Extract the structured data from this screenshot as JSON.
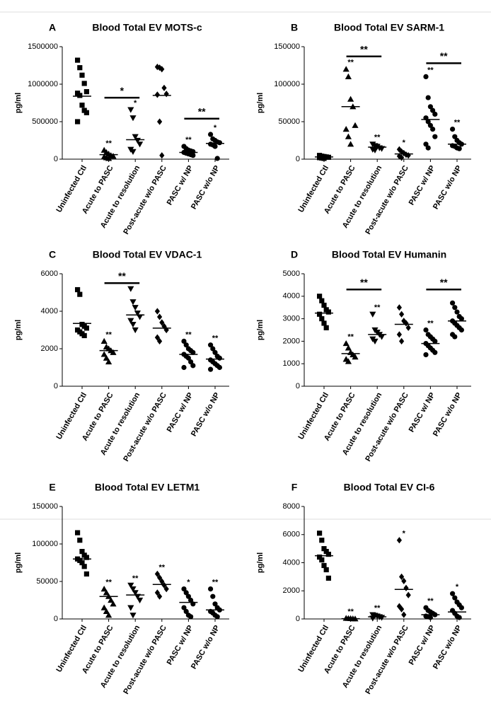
{
  "chart_data": [
    {
      "type": "strip",
      "panel": "A",
      "title": "Blood Total EV MOTS-c",
      "ylabel": "pg/ml",
      "categories": [
        "Uninfected Ctl",
        "Acute to PASC",
        "Acute to resolution",
        "Post-acute w/o PASC",
        "PASC w/ NP",
        "PASC w/o NP"
      ],
      "markers": [
        "square",
        "triangle",
        "triangle-down",
        "diamond",
        "circle",
        "circle"
      ],
      "color": "#000000",
      "values": [
        [
          1320000,
          1220000,
          1120000,
          1010000,
          900000,
          880000,
          850000,
          720000,
          650000,
          620000,
          500000
        ],
        [
          120000,
          90000,
          70000,
          50000,
          40000,
          30000,
          20000,
          10000
        ],
        [
          660000,
          550000,
          300000,
          250000,
          200000,
          130000,
          100000
        ],
        [
          1230000,
          1220000,
          1200000,
          950000,
          870000,
          860000,
          500000,
          50000
        ],
        [
          170000,
          140000,
          120000,
          110000,
          100000,
          90000,
          80000,
          70000,
          60000,
          50000
        ],
        [
          330000,
          270000,
          250000,
          230000,
          220000,
          200000,
          190000,
          170000,
          10000
        ]
      ],
      "means": [
        840000,
        60000,
        260000,
        850000,
        90000,
        210000
      ],
      "annotations": [
        null,
        "**",
        "*",
        null,
        "**",
        "*"
      ],
      "brackets": [
        {
          "from": 1,
          "to": 2,
          "y": 820000,
          "label": "*"
        },
        {
          "from": 4,
          "to": 5,
          "y": 540000,
          "label": "**"
        }
      ],
      "ylim": [
        0,
        1500000
      ],
      "yticks": [
        0,
        500000,
        1000000,
        1500000
      ]
    },
    {
      "type": "strip",
      "panel": "B",
      "title": "Blood Total EV SARM-1",
      "ylabel": "pg/ml",
      "categories": [
        "Uninfected Ctl",
        "Acute to PASC",
        "Acute to resolution",
        "Post-acute w/o PASC",
        "PASC w/ NP",
        "PASC w/o NP"
      ],
      "markers": [
        "square",
        "triangle",
        "triangle-down",
        "diamond",
        "circle",
        "circle"
      ],
      "color": "#000000",
      "values": [
        [
          5000,
          4000,
          3500,
          3000,
          2500,
          2000,
          1500,
          1000
        ],
        [
          120000,
          110000,
          80000,
          70000,
          45000,
          40000,
          30000,
          20000
        ],
        [
          20000,
          18000,
          17000,
          15000,
          14000,
          13000,
          12000
        ],
        [
          13000,
          10000,
          8000,
          6000,
          5000,
          4000,
          2000
        ],
        [
          110000,
          82000,
          70000,
          65000,
          60000,
          55000,
          50000,
          45000,
          40000,
          30000,
          20000,
          15000
        ],
        [
          40000,
          30000,
          25000,
          22000,
          20000,
          18000,
          17000,
          15000,
          14000
        ]
      ],
      "means": [
        3000,
        70000,
        16000,
        7000,
        53000,
        20000
      ],
      "annotations": [
        null,
        "**",
        "**",
        "*",
        "**",
        "**"
      ],
      "brackets": [
        {
          "from": 1,
          "to": 2,
          "y": 137000,
          "label": "**"
        },
        {
          "from": 4,
          "to": 5,
          "y": 128000,
          "label": "**"
        }
      ],
      "ylim": [
        0,
        150000
      ],
      "yticks": [
        0,
        50000,
        100000,
        150000
      ]
    },
    {
      "type": "strip",
      "panel": "C",
      "title": "Blood Total EV VDAC-1",
      "ylabel": "pg/ml",
      "categories": [
        "Uninfected Ctl",
        "Acute to PASC",
        "Acute to resolution",
        "Post-acute w/o PASC",
        "PASC w/ NP",
        "PASC w/o NP"
      ],
      "markers": [
        "square",
        "triangle",
        "triangle-down",
        "diamond",
        "circle",
        "circle"
      ],
      "color": "#000000",
      "values": [
        [
          5150,
          4900,
          3300,
          3200,
          3100,
          3000,
          2900,
          2800,
          2700
        ],
        [
          2400,
          2100,
          2000,
          1900,
          1800,
          1700,
          1500,
          1300
        ],
        [
          5200,
          4500,
          4200,
          3900,
          3700,
          3500,
          3300,
          3000
        ],
        [
          4000,
          3700,
          3400,
          3200,
          3000,
          2600,
          2400
        ],
        [
          2400,
          2200,
          2000,
          1900,
          1800,
          1700,
          1600,
          1500,
          1300,
          1100,
          1000
        ],
        [
          2200,
          2000,
          1800,
          1600,
          1500,
          1400,
          1300,
          1200,
          1100,
          1000,
          900
        ]
      ],
      "means": [
        3350,
        1900,
        3800,
        3100,
        1700,
        1450
      ],
      "annotations": [
        null,
        "**",
        null,
        null,
        "**",
        "**"
      ],
      "brackets": [
        {
          "from": 1,
          "to": 2,
          "y": 5500,
          "label": "**"
        }
      ],
      "ylim": [
        0,
        6000
      ],
      "yticks": [
        0,
        2000,
        4000,
        6000
      ]
    },
    {
      "type": "strip",
      "panel": "D",
      "title": "Blood Total EV Humanin",
      "ylabel": "pg/ml",
      "categories": [
        "Uninfected Ctl",
        "Acute to PASC",
        "Acute to resolution",
        "Post-acute w/o PASC",
        "PASC w/ NP",
        "PASC w/o NP"
      ],
      "markers": [
        "square",
        "triangle",
        "triangle-down",
        "diamond",
        "circle",
        "circle"
      ],
      "color": "#000000",
      "values": [
        [
          4000,
          3800,
          3600,
          3400,
          3300,
          3200,
          3000,
          2800,
          2600
        ],
        [
          1900,
          1700,
          1500,
          1400,
          1300,
          1200,
          1100
        ],
        [
          3200,
          2500,
          2400,
          2300,
          2200,
          2100,
          2000
        ],
        [
          3500,
          3200,
          2900,
          2800,
          2600,
          2300,
          2000
        ],
        [
          2500,
          2300,
          2200,
          2100,
          2000,
          1900,
          1800,
          1700,
          1600,
          1500,
          1400
        ],
        [
          3700,
          3500,
          3300,
          3100,
          3000,
          2900,
          2800,
          2700,
          2600,
          2500,
          2300,
          2200
        ]
      ],
      "means": [
        3250,
        1450,
        2300,
        2750,
        1900,
        2900
      ],
      "annotations": [
        null,
        "**",
        "**",
        null,
        "**",
        null
      ],
      "brackets": [
        {
          "from": 1,
          "to": 2,
          "y": 4300,
          "label": "**"
        },
        {
          "from": 4,
          "to": 5,
          "y": 4300,
          "label": "**"
        }
      ],
      "ylim": [
        0,
        5000
      ],
      "yticks": [
        0,
        1000,
        2000,
        3000,
        4000,
        5000
      ]
    },
    {
      "type": "strip",
      "panel": "E",
      "title": "Blood Total EV LETM1",
      "ylabel": "pg/ml",
      "categories": [
        "Uninfected Ctl",
        "Acute to PASC",
        "Acute to resolution",
        "Post-acute w/o PASC",
        "PASC w/ NP",
        "PASC w/o NP"
      ],
      "markers": [
        "square",
        "triangle",
        "triangle-down",
        "diamond",
        "circle",
        "circle"
      ],
      "color": "#000000",
      "values": [
        [
          115000,
          105000,
          90000,
          85000,
          82000,
          80000,
          78000,
          75000,
          70000,
          60000
        ],
        [
          40000,
          35000,
          30000,
          25000,
          20000,
          15000,
          10000,
          5000
        ],
        [
          45000,
          40000,
          35000,
          30000,
          25000,
          15000,
          5000
        ],
        [
          60000,
          55000,
          50000,
          45000,
          40000,
          35000,
          30000
        ],
        [
          40000,
          35000,
          30000,
          25000,
          20000,
          15000,
          10000,
          5000,
          3000
        ],
        [
          40000,
          30000,
          20000,
          15000,
          12000,
          10000,
          8000,
          5000,
          3000
        ]
      ],
      "means": [
        80000,
        30000,
        32000,
        46000,
        22000,
        12000
      ],
      "annotations": [
        null,
        "**",
        "**",
        "**",
        "*",
        "**"
      ],
      "brackets": [],
      "ylim": [
        0,
        150000
      ],
      "yticks": [
        0,
        50000,
        100000,
        150000
      ]
    },
    {
      "type": "strip",
      "panel": "F",
      "title": "Blood Total EV CI-6",
      "ylabel": "pg/ml",
      "categories": [
        "Uninfected Ctl",
        "Acute to PASC",
        "Acute to resolution",
        "Post-acute w/o PASC",
        "PASC w/ NP",
        "PASC w/o NP"
      ],
      "markers": [
        "square",
        "triangle",
        "triangle-down",
        "diamond",
        "circle",
        "circle"
      ],
      "color": "#000000",
      "values": [
        [
          6100,
          5600,
          5000,
          4800,
          4600,
          4400,
          4200,
          3800,
          3500,
          2900
        ],
        [
          50,
          40,
          30,
          20,
          10
        ],
        [
          300,
          250,
          200,
          150,
          100,
          50
        ],
        [
          5600,
          3000,
          2700,
          2200,
          1700,
          900,
          700,
          300
        ],
        [
          800,
          600,
          500,
          400,
          300,
          200,
          150,
          100
        ],
        [
          1800,
          1500,
          1200,
          1000,
          800,
          600,
          400,
          200,
          100
        ]
      ],
      "means": [
        4500,
        20,
        150,
        2100,
        300,
        500
      ],
      "annotations": [
        null,
        "**",
        "**",
        "*",
        "**",
        "*"
      ],
      "brackets": [],
      "ylim": [
        0,
        8000
      ],
      "yticks": [
        0,
        2000,
        4000,
        6000,
        8000
      ]
    }
  ]
}
